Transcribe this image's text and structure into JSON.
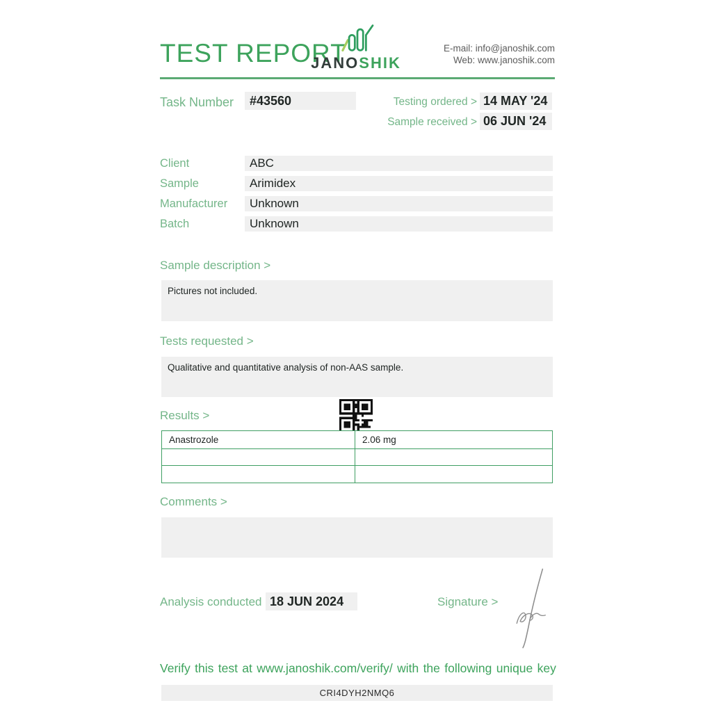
{
  "colors": {
    "brand_green": "#3da35c",
    "label_green": "#74b689",
    "border_green": "#3f9e63",
    "rule_green": "#5baa73",
    "box_gray": "#f0f0f0",
    "key_gray": "#efefef",
    "text_dark": "#202624"
  },
  "header": {
    "title": "TEST REPORT",
    "logo_dark": "JANO",
    "logo_green": "SHIK",
    "email": "E-mail: info@janoshik.com",
    "web": "Web: www.janoshik.com"
  },
  "task": {
    "label": "Task Number",
    "value": "#43560",
    "dates": [
      {
        "label": "Testing ordered  >",
        "value": "14 MAY '24"
      },
      {
        "label": "Sample received >",
        "value": "06 JUN '24"
      }
    ]
  },
  "info": {
    "rows": [
      {
        "label": "Client",
        "value": "ABC"
      },
      {
        "label": "Sample",
        "value": "Arimidex"
      },
      {
        "label": "Manufacturer",
        "value": "Unknown"
      },
      {
        "label": "Batch",
        "value": "Unknown"
      }
    ]
  },
  "sections": {
    "sample_description": {
      "title": "Sample description >",
      "text": "Pictures not included."
    },
    "tests_requested": {
      "title": "Tests requested >",
      "text": "Qualitative and quantitative analysis of non-AAS sample."
    },
    "results": {
      "title": "Results >",
      "rows": [
        {
          "name": "Anastrozole",
          "amount": "2.06 mg"
        },
        {
          "name": "",
          "amount": ""
        },
        {
          "name": "",
          "amount": ""
        }
      ]
    },
    "comments": {
      "title": "Comments >",
      "text": ""
    }
  },
  "footer": {
    "analysis_label": "Analysis conducted >",
    "analysis_value": "18 JUN 2024",
    "signature_label": "Signature >",
    "verify_text": "Verify this test at www.janoshik.com/verify/ with the following unique key",
    "unique_key": "CRI4DYH2NMQ6"
  },
  "icons": {
    "logo": "bar-chart-icon",
    "qr": "qr-code",
    "signature": "signature-scribble"
  }
}
